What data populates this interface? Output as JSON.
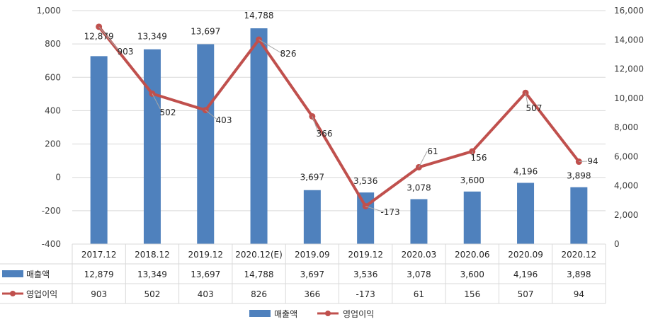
{
  "chart_data": {
    "type": "bar+line",
    "categories": [
      "2017.12",
      "2018.12",
      "2019.12",
      "2020.12(E)",
      "2019.09",
      "2019.12",
      "2020.03",
      "2020.06",
      "2020.09",
      "2020.12"
    ],
    "series": [
      {
        "name": "매출액",
        "type": "bar",
        "axis": "right",
        "color": "#4f81bd",
        "values": [
          12879,
          13349,
          13697,
          14788,
          3697,
          3536,
          3078,
          3600,
          4196,
          3898
        ],
        "labels": [
          "12,879",
          "13,349",
          "13,697",
          "14,788",
          "3,697",
          "3,536",
          "3,078",
          "3,600",
          "4,196",
          "3,898"
        ]
      },
      {
        "name": "영업이익",
        "type": "line",
        "axis": "left",
        "color": "#c0504d",
        "values": [
          903,
          502,
          403,
          826,
          366,
          -173,
          61,
          156,
          507,
          94
        ],
        "labels": [
          "903",
          "502",
          "403",
          "826",
          "366",
          "-173",
          "61",
          "156",
          "507",
          "94"
        ]
      }
    ],
    "y_left": {
      "min": -400,
      "max": 1000,
      "step": 200,
      "tick_labels": [
        "-400",
        "-200",
        "0",
        "200",
        "400",
        "600",
        "800",
        "1,000"
      ]
    },
    "y_right": {
      "min": 0,
      "max": 16000,
      "step": 2000,
      "tick_labels": [
        "0",
        "2,000",
        "4,000",
        "6,000",
        "8,000",
        "10,000",
        "12,000",
        "14,000",
        "16,000"
      ]
    },
    "grid": true,
    "legend_position": "bottom",
    "data_table": true
  }
}
